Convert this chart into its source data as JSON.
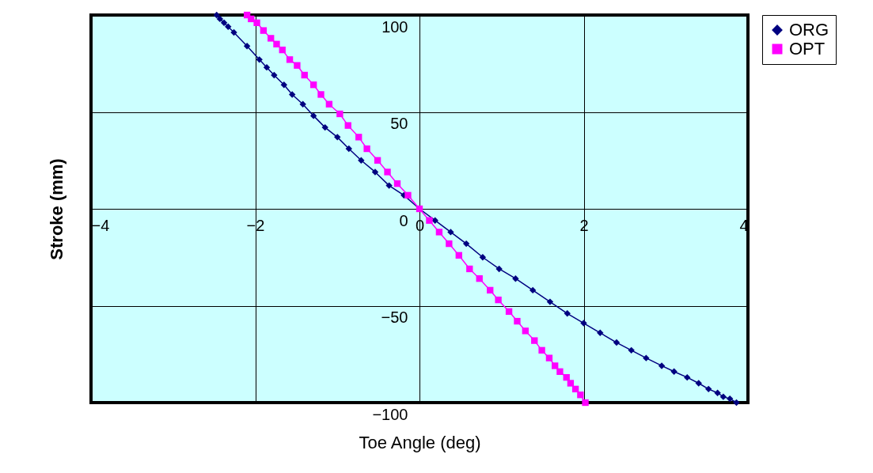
{
  "chart_data": {
    "type": "line",
    "xlabel": "Toe Angle (deg)",
    "ylabel": "Stroke (mm)",
    "xlim": [
      -4,
      4
    ],
    "xticks": [
      -4,
      -2,
      0,
      2,
      4
    ],
    "ylim": [
      -100,
      100
    ],
    "yticks": [
      -100,
      -50,
      0,
      50,
      100
    ],
    "grid": true,
    "legend": "right",
    "series": [
      {
        "name": "ORG",
        "color": "#000080",
        "marker": "diamond",
        "x": [
          -2.47,
          -2.43,
          -2.38,
          -2.33,
          -2.26,
          -2.1,
          -1.95,
          -1.86,
          -1.77,
          -1.65,
          -1.55,
          -1.42,
          -1.29,
          -1.15,
          -1.0,
          -0.86,
          -0.71,
          -0.54,
          -0.37,
          -0.19,
          0,
          0.19,
          0.38,
          0.57,
          0.77,
          0.97,
          1.17,
          1.38,
          1.59,
          1.8,
          2.0,
          2.2,
          2.4,
          2.58,
          2.76,
          2.95,
          3.1,
          3.26,
          3.4,
          3.52,
          3.63,
          3.7,
          3.78,
          3.86
        ],
        "values": [
          100,
          98,
          96,
          94,
          91,
          84,
          77,
          73,
          69,
          64,
          59,
          54,
          48,
          42,
          37,
          31,
          25,
          19,
          12,
          7,
          0,
          -6,
          -12,
          -18,
          -25,
          -31,
          -36,
          -42,
          -48,
          -54,
          -59,
          -64,
          -69,
          -73,
          -77,
          -81,
          -84,
          -87,
          -90,
          -93,
          -95,
          -97,
          -98,
          -100
        ]
      },
      {
        "name": "OPT",
        "color": "#ff00ff",
        "marker": "square",
        "x": [
          -2.1,
          -2.05,
          -1.98,
          -1.9,
          -1.81,
          -1.74,
          -1.67,
          -1.58,
          -1.49,
          -1.4,
          -1.29,
          -1.2,
          -1.1,
          -0.97,
          -0.87,
          -0.74,
          -0.64,
          -0.51,
          -0.39,
          -0.27,
          -0.14,
          0,
          0.12,
          0.24,
          0.36,
          0.48,
          0.61,
          0.73,
          0.86,
          0.96,
          1.09,
          1.19,
          1.29,
          1.4,
          1.49,
          1.58,
          1.65,
          1.71,
          1.79,
          1.84,
          1.9,
          1.96,
          2.02
        ],
        "values": [
          100,
          98,
          96,
          92,
          88,
          85,
          82,
          77,
          74,
          69,
          64,
          59,
          54,
          49,
          43,
          37,
          31,
          25,
          19,
          13,
          7,
          0,
          -6,
          -12,
          -18,
          -24,
          -31,
          -36,
          -42,
          -47,
          -53,
          -58,
          -63,
          -68,
          -73,
          -77,
          -81,
          -84,
          -87,
          -90,
          -93,
          -96,
          -100
        ]
      }
    ]
  }
}
